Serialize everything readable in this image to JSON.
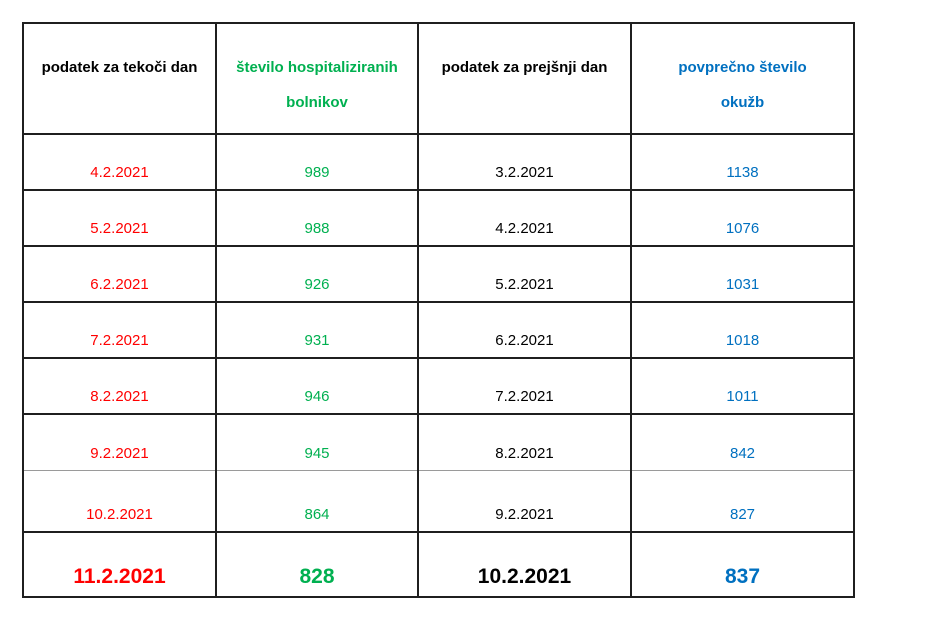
{
  "colors": {
    "current_day_text": "#FF0000",
    "hospitalized_text": "#00B050",
    "previous_day_text": "#000000",
    "avg_infections_text": "#0070C0",
    "table_border": "#1F1F1F",
    "thin_divider": "#9A9A9A"
  },
  "table": {
    "headers": [
      {
        "label": "podatek za tekoči dan",
        "lines": [
          "podatek za tekoči dan"
        ]
      },
      {
        "label": "število hospitaliziranih bolnikov",
        "lines": [
          "število hospitaliziranih",
          "bolnikov"
        ]
      },
      {
        "label": "podatek za prejšnji dan",
        "lines": [
          "podatek za prejšnji dan"
        ]
      },
      {
        "label": "povprečno število okužb",
        "lines": [
          "povprečno število",
          "okužb"
        ]
      }
    ],
    "rows": [
      {
        "current_date": "4.2.2021",
        "hospitalized": "989",
        "previous_date": "3.2.2021",
        "avg_infections": "1138"
      },
      {
        "current_date": "5.2.2021",
        "hospitalized": "988",
        "previous_date": "4.2.2021",
        "avg_infections": "1076"
      },
      {
        "current_date": "6.2.2021",
        "hospitalized": "926",
        "previous_date": "5.2.2021",
        "avg_infections": "1031"
      },
      {
        "current_date": "7.2.2021",
        "hospitalized": "931",
        "previous_date": "6.2.2021",
        "avg_infections": "1018"
      },
      {
        "current_date": "8.2.2021",
        "hospitalized": "946",
        "previous_date": "7.2.2021",
        "avg_infections": "1011"
      },
      {
        "current_date": "9.2.2021",
        "hospitalized": "945",
        "previous_date": "8.2.2021",
        "avg_infections": "842"
      },
      {
        "current_date": "10.2.2021",
        "hospitalized": "864",
        "previous_date": "9.2.2021",
        "avg_infections": "827"
      },
      {
        "current_date": "11.2.2021",
        "hospitalized": "828",
        "previous_date": "10.2.2021",
        "avg_infections": "837"
      }
    ]
  }
}
